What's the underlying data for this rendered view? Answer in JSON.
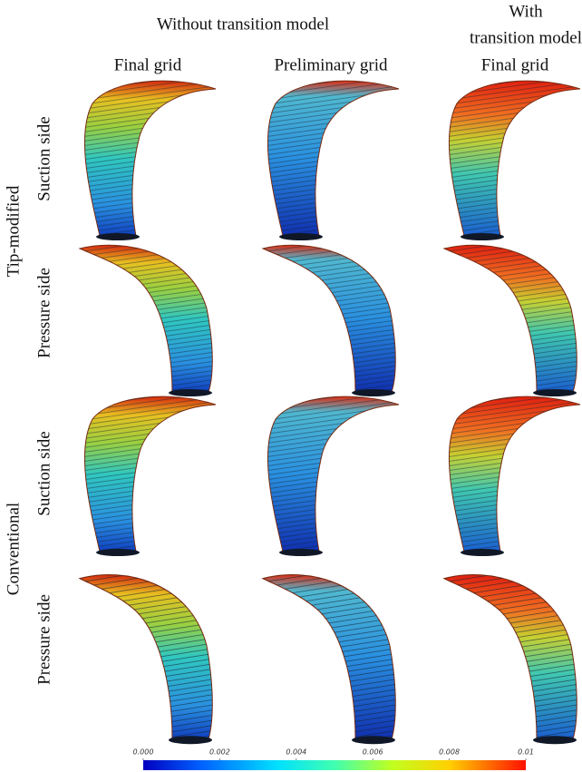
{
  "header": {
    "group": "Without transition model",
    "with_line1": "With",
    "with_line2": "transition model"
  },
  "columns": [
    "Final grid",
    "Preliminary grid",
    "Final grid"
  ],
  "row_groups": [
    "Tip-modified",
    "Conventional"
  ],
  "rows": [
    "Suction side",
    "Pressure side",
    "Suction side",
    "Pressure side"
  ],
  "colorbar": {
    "range": [
      0,
      0.01
    ],
    "ticks": [
      {
        "value": 0,
        "label": "0.000"
      },
      {
        "value": 0.002,
        "label": "0.002"
      },
      {
        "value": 0.004,
        "label": "0.004"
      },
      {
        "value": 0.006,
        "label": "0.006"
      },
      {
        "value": 0.008,
        "label": "0.008"
      },
      0.01
    ]
  }
}
